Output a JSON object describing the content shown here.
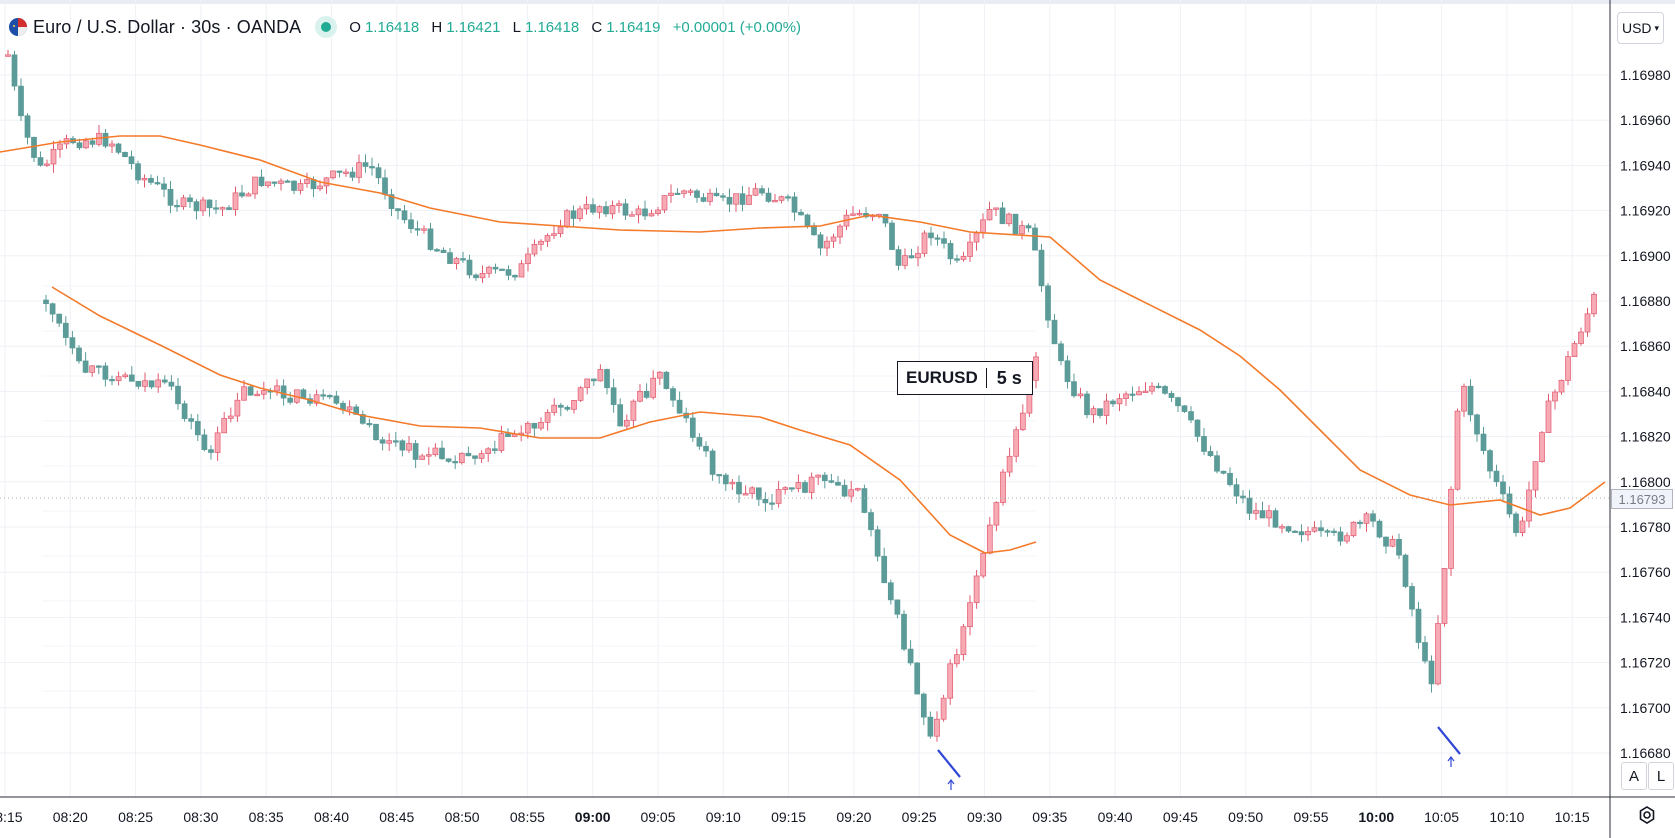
{
  "header": {
    "symbol_title": "Euro / U.S. Dollar · 30s · OANDA",
    "ohlc": {
      "o_label": "O",
      "o": "1.16418",
      "h_label": "H",
      "h": "1.16421",
      "l_label": "L",
      "l": "1.16418",
      "c_label": "C",
      "c": "1.16419",
      "change": "+0.00001 (+0.00%)"
    },
    "currency": "USD"
  },
  "badge": {
    "symbol": "EURUSD",
    "time": "5 s"
  },
  "price_axis": {
    "labels": [
      "1.16980",
      "1.16960",
      "1.16940",
      "1.16920",
      "1.16900",
      "1.16880",
      "1.16860",
      "1.16840",
      "1.16820",
      "1.16800",
      "1.16780",
      "1.16760",
      "1.16740",
      "1.16720",
      "1.16700",
      "1.16680"
    ],
    "current_price": "1.16793"
  },
  "time_axis": {
    "labels": [
      "08:15",
      "08:20",
      "08:25",
      "08:30",
      "08:35",
      "08:40",
      "08:45",
      "08:50",
      "08:55",
      "09:00",
      "09:05",
      "09:10",
      "09:15",
      "09:20",
      "09:25",
      "09:30",
      "09:35",
      "09:40",
      "09:45",
      "09:50",
      "09:55",
      "10:00",
      "10:05",
      "10:10",
      "10:15"
    ],
    "bold": [
      "09:00",
      "10:00"
    ]
  },
  "scale_buttons": {
    "auto": "A",
    "log": "L"
  },
  "colors": {
    "up": "#f7a9b4",
    "up_border": "#e05a6e",
    "down": "#5b9b98",
    "ma": "#f47a2a",
    "arrow": "#3148d6",
    "grid": "#eef1f6",
    "axis_text": "#131722"
  },
  "icons": [
    "eur-usd-flag-icon",
    "market-open-dot-icon",
    "chevron-down-icon",
    "chart-settings-icon",
    "arrow-up-icon"
  ]
}
